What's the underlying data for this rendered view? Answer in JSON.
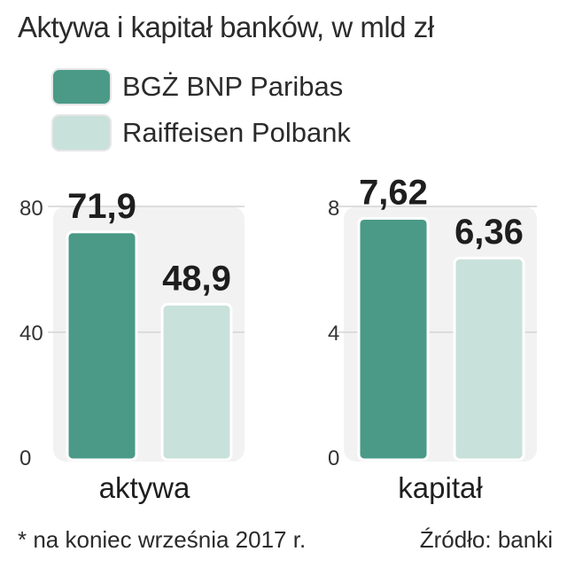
{
  "title": "Aktywa i kapitał banków, w mld zł",
  "legend": [
    {
      "label": "BGŻ BNP Paribas",
      "color": "#4a9a87"
    },
    {
      "label": "Raiffeisen Polbank",
      "color": "#c8e1da"
    }
  ],
  "footnote": "* na koniec września 2017 r.",
  "source": "Źródło: banki",
  "chart_data": [
    {
      "type": "bar",
      "categories": [
        "aktywa"
      ],
      "ylim": [
        0,
        80
      ],
      "yticks": [
        "0",
        "40",
        "80"
      ],
      "xlabel": "aktywa",
      "series": [
        {
          "name": "BGŻ BNP Paribas",
          "values": [
            71.9
          ],
          "labels": [
            "71,9"
          ],
          "color": "#4a9a87"
        },
        {
          "name": "Raiffeisen Polbank",
          "values": [
            48.9
          ],
          "labels": [
            "48,9"
          ],
          "color": "#c8e1da"
        }
      ]
    },
    {
      "type": "bar",
      "categories": [
        "kapitał"
      ],
      "ylim": [
        0,
        8
      ],
      "yticks": [
        "0",
        "4",
        "8"
      ],
      "xlabel": "kapitał",
      "series": [
        {
          "name": "BGŻ BNP Paribas",
          "values": [
            7.62
          ],
          "labels": [
            "7,62"
          ],
          "color": "#4a9a87"
        },
        {
          "name": "Raiffeisen Polbank",
          "values": [
            6.36
          ],
          "labels": [
            "6,36"
          ],
          "color": "#c8e1da"
        }
      ]
    }
  ]
}
